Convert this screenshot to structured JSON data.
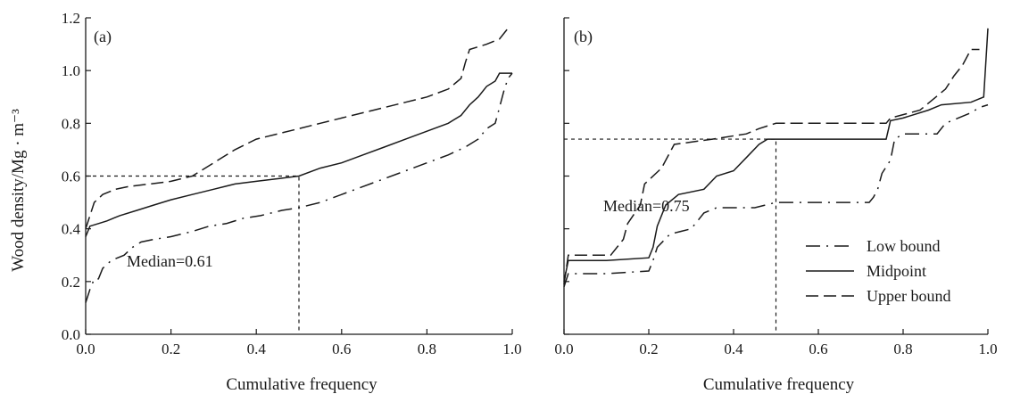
{
  "chart_data": [
    {
      "type": "line",
      "panel_label": "(a)",
      "xlabel": "Cumulative frequency",
      "ylabel": "Wood density/Mg · m⁻³",
      "xlim": [
        0,
        1
      ],
      "ylim": [
        0,
        1.2
      ],
      "x_ticks": [
        "0.0",
        "0.2",
        "0.4",
        "0.6",
        "0.8",
        "1.0"
      ],
      "y_ticks": [
        "0.0",
        "0.2",
        "0.4",
        "0.6",
        "0.8",
        "1.0",
        "1.2"
      ],
      "grid": false,
      "median": {
        "label": "Median=0.61",
        "x": 0.5,
        "y": 0.6
      },
      "series": [
        {
          "key": "low",
          "style": "dash-dot",
          "points": [
            [
              0.0,
              0.12
            ],
            [
              0.01,
              0.17
            ],
            [
              0.02,
              0.21
            ],
            [
              0.03,
              0.21
            ],
            [
              0.04,
              0.25
            ],
            [
              0.06,
              0.28
            ],
            [
              0.09,
              0.3
            ],
            [
              0.11,
              0.33
            ],
            [
              0.13,
              0.35
            ],
            [
              0.16,
              0.36
            ],
            [
              0.2,
              0.37
            ],
            [
              0.25,
              0.39
            ],
            [
              0.29,
              0.41
            ],
            [
              0.33,
              0.42
            ],
            [
              0.37,
              0.44
            ],
            [
              0.41,
              0.45
            ],
            [
              0.46,
              0.47
            ],
            [
              0.5,
              0.48
            ],
            [
              0.55,
              0.5
            ],
            [
              0.6,
              0.53
            ],
            [
              0.65,
              0.56
            ],
            [
              0.7,
              0.59
            ],
            [
              0.75,
              0.62
            ],
            [
              0.8,
              0.65
            ],
            [
              0.85,
              0.68
            ],
            [
              0.89,
              0.71
            ],
            [
              0.92,
              0.74
            ],
            [
              0.94,
              0.78
            ],
            [
              0.96,
              0.8
            ],
            [
              0.97,
              0.86
            ],
            [
              0.98,
              0.92
            ],
            [
              0.99,
              0.97
            ],
            [
              1.0,
              0.99
            ]
          ]
        },
        {
          "key": "mid",
          "style": "solid",
          "points": [
            [
              0.0,
              0.37
            ],
            [
              0.01,
              0.41
            ],
            [
              0.03,
              0.42
            ],
            [
              0.05,
              0.43
            ],
            [
              0.08,
              0.45
            ],
            [
              0.12,
              0.47
            ],
            [
              0.16,
              0.49
            ],
            [
              0.2,
              0.51
            ],
            [
              0.25,
              0.53
            ],
            [
              0.3,
              0.55
            ],
            [
              0.35,
              0.57
            ],
            [
              0.4,
              0.58
            ],
            [
              0.45,
              0.59
            ],
            [
              0.5,
              0.6
            ],
            [
              0.55,
              0.63
            ],
            [
              0.6,
              0.65
            ],
            [
              0.65,
              0.68
            ],
            [
              0.7,
              0.71
            ],
            [
              0.75,
              0.74
            ],
            [
              0.8,
              0.77
            ],
            [
              0.85,
              0.8
            ],
            [
              0.88,
              0.83
            ],
            [
              0.9,
              0.87
            ],
            [
              0.92,
              0.9
            ],
            [
              0.94,
              0.94
            ],
            [
              0.96,
              0.96
            ],
            [
              0.97,
              0.99
            ],
            [
              1.0,
              0.99
            ]
          ]
        },
        {
          "key": "upper",
          "style": "dashed",
          "points": [
            [
              0.0,
              0.4
            ],
            [
              0.01,
              0.45
            ],
            [
              0.02,
              0.5
            ],
            [
              0.04,
              0.53
            ],
            [
              0.07,
              0.55
            ],
            [
              0.1,
              0.56
            ],
            [
              0.15,
              0.57
            ],
            [
              0.2,
              0.58
            ],
            [
              0.25,
              0.6
            ],
            [
              0.3,
              0.65
            ],
            [
              0.35,
              0.7
            ],
            [
              0.4,
              0.74
            ],
            [
              0.45,
              0.76
            ],
            [
              0.5,
              0.78
            ],
            [
              0.55,
              0.8
            ],
            [
              0.6,
              0.82
            ],
            [
              0.65,
              0.84
            ],
            [
              0.7,
              0.86
            ],
            [
              0.75,
              0.88
            ],
            [
              0.8,
              0.9
            ],
            [
              0.85,
              0.93
            ],
            [
              0.88,
              0.97
            ],
            [
              0.89,
              1.03
            ],
            [
              0.9,
              1.08
            ],
            [
              0.94,
              1.1
            ],
            [
              0.97,
              1.12
            ],
            [
              0.99,
              1.16
            ]
          ]
        }
      ]
    },
    {
      "type": "line",
      "panel_label": "(b)",
      "xlabel": "Cumulative frequency",
      "ylabel": "",
      "xlim": [
        0,
        1
      ],
      "ylim": [
        0,
        1.2
      ],
      "x_ticks": [
        "0.0",
        "0.2",
        "0.4",
        "0.6",
        "0.8",
        "1.0"
      ],
      "y_ticks": [],
      "grid": false,
      "median": {
        "label": "Median=0.75",
        "x": 0.5,
        "y": 0.74
      },
      "legend": {
        "position": "bottom-right",
        "entries": [
          {
            "label": "Low bound",
            "style": "dash-dot"
          },
          {
            "label": "Midpoint",
            "style": "solid"
          },
          {
            "label": "Upper bound",
            "style": "dashed"
          }
        ]
      },
      "series": [
        {
          "key": "low",
          "style": "dash-dot",
          "points": [
            [
              0.0,
              0.18
            ],
            [
              0.01,
              0.23
            ],
            [
              0.1,
              0.23
            ],
            [
              0.2,
              0.24
            ],
            [
              0.21,
              0.28
            ],
            [
              0.22,
              0.33
            ],
            [
              0.25,
              0.38
            ],
            [
              0.3,
              0.4
            ],
            [
              0.33,
              0.46
            ],
            [
              0.36,
              0.48
            ],
            [
              0.45,
              0.48
            ],
            [
              0.5,
              0.5
            ],
            [
              0.6,
              0.5
            ],
            [
              0.7,
              0.5
            ],
            [
              0.72,
              0.5
            ],
            [
              0.73,
              0.52
            ],
            [
              0.74,
              0.55
            ],
            [
              0.75,
              0.61
            ],
            [
              0.77,
              0.66
            ],
            [
              0.78,
              0.74
            ],
            [
              0.8,
              0.76
            ],
            [
              0.88,
              0.76
            ],
            [
              0.9,
              0.8
            ],
            [
              0.96,
              0.84
            ],
            [
              0.98,
              0.86
            ],
            [
              1.0,
              0.87
            ]
          ]
        },
        {
          "key": "mid",
          "style": "solid",
          "points": [
            [
              0.0,
              0.2
            ],
            [
              0.01,
              0.28
            ],
            [
              0.1,
              0.28
            ],
            [
              0.2,
              0.29
            ],
            [
              0.21,
              0.33
            ],
            [
              0.22,
              0.41
            ],
            [
              0.24,
              0.49
            ],
            [
              0.27,
              0.53
            ],
            [
              0.33,
              0.55
            ],
            [
              0.36,
              0.6
            ],
            [
              0.4,
              0.62
            ],
            [
              0.43,
              0.67
            ],
            [
              0.46,
              0.72
            ],
            [
              0.48,
              0.74
            ],
            [
              0.6,
              0.74
            ],
            [
              0.76,
              0.74
            ],
            [
              0.77,
              0.81
            ],
            [
              0.8,
              0.82
            ],
            [
              0.86,
              0.85
            ],
            [
              0.89,
              0.87
            ],
            [
              0.96,
              0.88
            ],
            [
              0.99,
              0.9
            ],
            [
              1.0,
              1.16
            ]
          ]
        },
        {
          "key": "upper",
          "style": "dashed",
          "points": [
            [
              0.0,
              0.19
            ],
            [
              0.01,
              0.3
            ],
            [
              0.11,
              0.3
            ],
            [
              0.14,
              0.36
            ],
            [
              0.15,
              0.42
            ],
            [
              0.18,
              0.49
            ],
            [
              0.19,
              0.57
            ],
            [
              0.23,
              0.63
            ],
            [
              0.26,
              0.72
            ],
            [
              0.35,
              0.74
            ],
            [
              0.43,
              0.76
            ],
            [
              0.46,
              0.78
            ],
            [
              0.5,
              0.8
            ],
            [
              0.76,
              0.8
            ],
            [
              0.77,
              0.82
            ],
            [
              0.84,
              0.85
            ],
            [
              0.9,
              0.93
            ],
            [
              0.92,
              0.98
            ],
            [
              0.94,
              1.02
            ],
            [
              0.96,
              1.08
            ],
            [
              0.98,
              1.08
            ]
          ]
        }
      ]
    }
  ]
}
